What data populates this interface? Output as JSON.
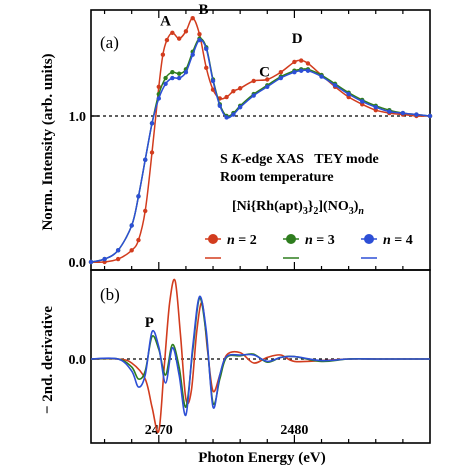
{
  "chart_data": [
    {
      "panel": "(a)",
      "type": "line",
      "ylabel": "Norm. Intensity (arb. units)",
      "xlim": [
        2465,
        2490
      ],
      "ylim": [
        0,
        1.75
      ],
      "y_ticks": [
        0.0,
        1.0
      ],
      "y_tick_labels": [
        "0.0",
        "1.0"
      ],
      "reference_line": 1.0,
      "annotations": {
        "line1": "S K-edge XAS   TEY mode",
        "line2": "Room temperature"
      },
      "formula": {
        "a": "[Ni{Rh(apt)",
        "s1": "3",
        "b": "}",
        "s2": "2",
        "c": "](NO",
        "s3": "3",
        "d": ")",
        "s4": "n"
      },
      "peak_labels": [
        {
          "label": "A",
          "x": 2470.5,
          "y": 1.62
        },
        {
          "label": "B",
          "x": 2473.3,
          "y": 1.7
        },
        {
          "label": "C",
          "x": 2477.8,
          "y": 1.27
        },
        {
          "label": "D",
          "x": 2480.2,
          "y": 1.5
        }
      ],
      "legend": [
        {
          "prefix": "n",
          "value": "= 2",
          "color": "#d23c1e"
        },
        {
          "prefix": "n",
          "value": "= 3",
          "color": "#2e7d1e"
        },
        {
          "prefix": "n",
          "value": "= 4",
          "color": "#2d4fd6"
        }
      ],
      "series": [
        {
          "name": "n = 2",
          "color": "#d23c1e",
          "x": [
            2465,
            2466,
            2467,
            2468,
            2468.5,
            2469,
            2469.5,
            2470,
            2470.3,
            2470.6,
            2471,
            2471.5,
            2472,
            2472.5,
            2473,
            2473.5,
            2474,
            2474.5,
            2475,
            2475.5,
            2476,
            2477,
            2478,
            2479,
            2480,
            2480.5,
            2481,
            2482,
            2483,
            2484,
            2485,
            2486,
            2487,
            2488,
            2489,
            2490
          ],
          "y": [
            0.0,
            0.0,
            0.02,
            0.08,
            0.15,
            0.35,
            0.75,
            1.2,
            1.42,
            1.52,
            1.57,
            1.53,
            1.58,
            1.67,
            1.56,
            1.33,
            1.18,
            1.12,
            1.13,
            1.17,
            1.19,
            1.24,
            1.25,
            1.3,
            1.37,
            1.38,
            1.36,
            1.28,
            1.2,
            1.13,
            1.08,
            1.04,
            1.02,
            1.01,
            1.0,
            1.0
          ]
        },
        {
          "name": "n = 3",
          "color": "#2e7d1e",
          "x": [
            2465,
            2466,
            2467,
            2468,
            2468.5,
            2469,
            2469.5,
            2470,
            2470.5,
            2471,
            2471.5,
            2472,
            2472.5,
            2473,
            2473.5,
            2474,
            2474.5,
            2475,
            2475.5,
            2476,
            2477,
            2478,
            2479,
            2480,
            2480.5,
            2481,
            2482,
            2483,
            2484,
            2485,
            2486,
            2487,
            2488,
            2489,
            2490
          ],
          "y": [
            0.0,
            0.02,
            0.08,
            0.25,
            0.45,
            0.7,
            0.95,
            1.15,
            1.26,
            1.3,
            1.29,
            1.32,
            1.44,
            1.53,
            1.47,
            1.25,
            1.08,
            1.0,
            1.02,
            1.07,
            1.15,
            1.21,
            1.27,
            1.31,
            1.32,
            1.32,
            1.28,
            1.22,
            1.16,
            1.11,
            1.07,
            1.04,
            1.02,
            1.01,
            1.0
          ]
        },
        {
          "name": "n = 4",
          "color": "#2d4fd6",
          "x": [
            2465,
            2466,
            2467,
            2468,
            2468.5,
            2469,
            2469.5,
            2470,
            2470.5,
            2471,
            2471.5,
            2472,
            2472.5,
            2473,
            2473.5,
            2474,
            2474.5,
            2475,
            2475.5,
            2476,
            2477,
            2478,
            2479,
            2480,
            2480.5,
            2481,
            2482,
            2483,
            2484,
            2485,
            2486,
            2487,
            2488,
            2489,
            2490
          ],
          "y": [
            0.0,
            0.02,
            0.08,
            0.25,
            0.45,
            0.7,
            0.95,
            1.12,
            1.22,
            1.26,
            1.26,
            1.3,
            1.42,
            1.52,
            1.46,
            1.24,
            1.07,
            0.99,
            1.01,
            1.06,
            1.14,
            1.2,
            1.26,
            1.3,
            1.31,
            1.31,
            1.27,
            1.21,
            1.15,
            1.1,
            1.06,
            1.03,
            1.02,
            1.01,
            1.0
          ]
        }
      ]
    },
    {
      "panel": "(b)",
      "type": "line",
      "ylabel": "− 2nd. derivative",
      "xlabel": "Photon Energy (eV)",
      "xlim": [
        2465,
        2490
      ],
      "ylim": [
        -1.0,
        1.0
      ],
      "y_ticks": [
        0.0
      ],
      "y_tick_labels": [
        "0.0"
      ],
      "x_ticks": [
        2470,
        2480
      ],
      "x_tick_labels": [
        "2470",
        "2480"
      ],
      "reference_line": 0.0,
      "peak_labels": [
        {
          "label": "P",
          "x": 2469.3,
          "y": 0.4
        }
      ],
      "series": [
        {
          "name": "n = 2",
          "color": "#d23c1e",
          "x": [
            2465,
            2467,
            2468,
            2469,
            2469.5,
            2470,
            2470.4,
            2470.8,
            2471.2,
            2471.6,
            2472,
            2472.4,
            2472.8,
            2473.2,
            2473.6,
            2474,
            2474.5,
            2475,
            2476,
            2477,
            2478,
            2479,
            2480,
            2482,
            2484,
            2486,
            2488,
            2490
          ],
          "y": [
            0.0,
            0.0,
            -0.05,
            -0.25,
            -0.6,
            -0.9,
            -0.1,
            0.7,
            0.98,
            0.3,
            -0.5,
            -0.4,
            0.35,
            0.7,
            0.1,
            -0.4,
            -0.2,
            0.05,
            0.08,
            -0.05,
            0.02,
            0.05,
            -0.03,
            -0.02,
            0.0,
            0.0,
            0.0,
            0.0
          ]
        },
        {
          "name": "n = 3",
          "color": "#2e7d1e",
          "x": [
            2465,
            2467,
            2468,
            2468.5,
            2469,
            2469.5,
            2470,
            2470.5,
            2471,
            2471.5,
            2472,
            2472.5,
            2473,
            2473.5,
            2474,
            2474.5,
            2475,
            2476,
            2477,
            2478,
            2479,
            2480,
            2482,
            2484,
            2486,
            2488,
            2490
          ],
          "y": [
            0.0,
            0.0,
            -0.1,
            -0.25,
            -0.15,
            0.28,
            0.12,
            -0.2,
            0.18,
            -0.1,
            -0.6,
            0.1,
            0.76,
            0.3,
            -0.55,
            -0.25,
            0.02,
            0.04,
            0.06,
            -0.04,
            0.02,
            0.03,
            -0.03,
            0.0,
            0.0,
            0.0,
            0.0
          ]
        },
        {
          "name": "n = 4",
          "color": "#2d4fd6",
          "x": [
            2465,
            2467,
            2468,
            2468.5,
            2469,
            2469.5,
            2470,
            2470.5,
            2471,
            2471.5,
            2472,
            2472.5,
            2473,
            2473.5,
            2474,
            2474.5,
            2475,
            2476,
            2477,
            2478,
            2479,
            2480,
            2482,
            2484,
            2486,
            2488,
            2490
          ],
          "y": [
            0.0,
            0.0,
            -0.15,
            -0.35,
            -0.2,
            0.34,
            0.15,
            -0.3,
            0.14,
            -0.2,
            -0.7,
            0.15,
            0.78,
            0.35,
            -0.6,
            -0.2,
            0.03,
            0.05,
            0.05,
            -0.03,
            0.02,
            0.03,
            -0.02,
            0.0,
            0.0,
            0.0,
            0.0
          ]
        }
      ]
    }
  ]
}
